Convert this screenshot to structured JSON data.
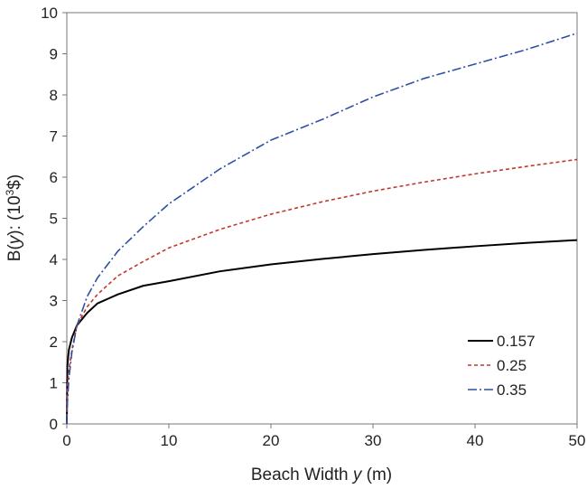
{
  "chart_data": {
    "type": "line",
    "title": "",
    "xlabel": {
      "prefix": "Beach Width ",
      "var": "y",
      "suffix": " (m)"
    },
    "ylabel": {
      "prefix": "B(",
      "var": "y",
      "mid": "):  (10",
      "sup": "3",
      "suffix": "$)"
    },
    "xlim": [
      0,
      50
    ],
    "ylim": [
      0,
      10
    ],
    "xticks": [
      0,
      10,
      20,
      30,
      40,
      50
    ],
    "yticks": [
      0,
      1,
      2,
      3,
      4,
      5,
      6,
      7,
      8,
      9,
      10
    ],
    "grid": false,
    "legend_position": "bottom-right",
    "series": [
      {
        "name": "0.157",
        "color": "#000000",
        "dash": "solid",
        "x": [
          0,
          0.05,
          0.2,
          0.5,
          1,
          2,
          3,
          5,
          7.5,
          10,
          15,
          20,
          25,
          30,
          35,
          40,
          45,
          50
        ],
        "y": [
          0,
          1.41,
          1.8,
          2.1,
          2.4,
          2.7,
          2.93,
          3.15,
          3.36,
          3.47,
          3.71,
          3.88,
          4.01,
          4.13,
          4.23,
          4.32,
          4.4,
          4.47
        ]
      },
      {
        "name": "0.25",
        "color": "#c0392b",
        "dash": "dashed",
        "x": [
          0,
          0.05,
          0.2,
          0.5,
          1,
          2,
          3,
          5,
          7.5,
          10,
          15,
          20,
          25,
          30,
          35,
          40,
          45,
          50
        ],
        "y": [
          0,
          0.89,
          1.3,
          1.8,
          2.4,
          2.85,
          3.15,
          3.6,
          3.95,
          4.28,
          4.73,
          5.1,
          5.4,
          5.66,
          5.88,
          6.08,
          6.26,
          6.43
        ]
      },
      {
        "name": "0.35",
        "color": "#2e4fa3",
        "dash": "dashdot",
        "x": [
          0,
          0.05,
          0.2,
          0.5,
          1,
          2,
          3,
          5,
          7.5,
          10,
          15,
          20,
          25,
          30,
          35,
          40,
          45,
          50
        ],
        "y": [
          0,
          0.5,
          1.1,
          1.75,
          2.4,
          3.1,
          3.55,
          4.2,
          4.8,
          5.35,
          6.2,
          6.9,
          7.4,
          7.95,
          8.4,
          8.75,
          9.1,
          9.5
        ]
      }
    ]
  }
}
